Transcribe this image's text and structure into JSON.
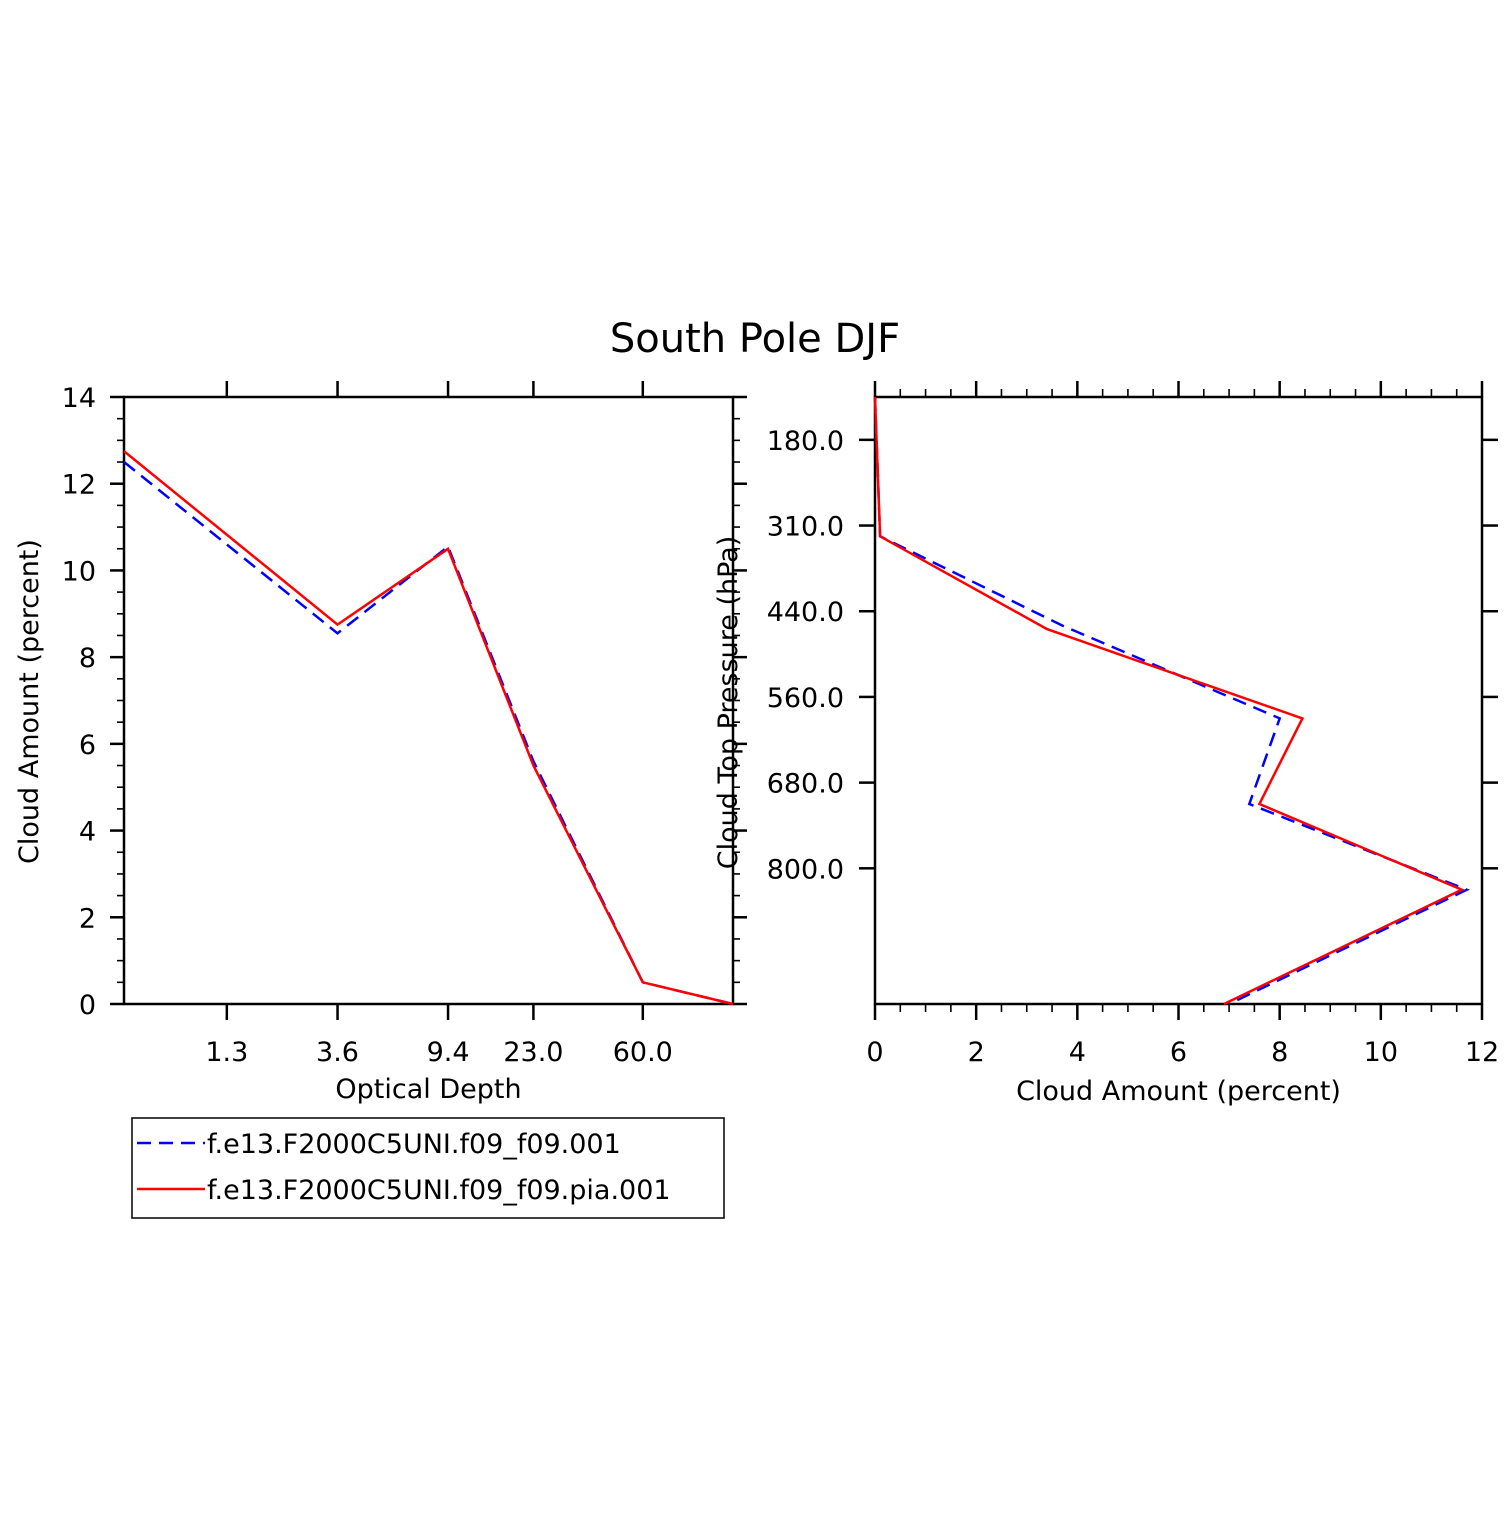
{
  "title": "South Pole DJF",
  "colors": {
    "series1": "#0000ff",
    "series2": "#ff0000",
    "axis": "#000000"
  },
  "legend": {
    "items": [
      {
        "label": "f.e13.F2000C5UNI.f09_f09.001",
        "color": "#0000ff",
        "style": "dashed"
      },
      {
        "label": "f.e13.F2000C5UNI.f09_f09.pia.001",
        "color": "#ff0000",
        "style": "solid"
      }
    ]
  },
  "chart_data": [
    {
      "type": "line",
      "xlabel": "Optical Depth",
      "ylabel": "Cloud Amount (percent)",
      "xticks": [
        "1.3",
        "3.6",
        "9.4",
        "23.0",
        "60.0"
      ],
      "ylim": [
        0,
        14
      ],
      "yticks": [
        0,
        2,
        4,
        6,
        8,
        10,
        12,
        14
      ],
      "grid": false,
      "series": [
        {
          "name": "f.e13.F2000C5UNI.f09_f09.001",
          "color": "#0000ff",
          "style": "dashed",
          "x": [
            0.3,
            2.3,
            6.6,
            14.9,
            42.3,
            100.0
          ],
          "y": [
            12.5,
            8.55,
            10.55,
            5.6,
            0.5,
            0.0
          ]
        },
        {
          "name": "f.e13.F2000C5UNI.f09_f09.pia.001",
          "color": "#ff0000",
          "style": "solid",
          "x": [
            0.3,
            2.3,
            6.6,
            14.9,
            42.3,
            100.0
          ],
          "y": [
            12.75,
            8.75,
            10.5,
            5.5,
            0.5,
            0.0
          ]
        }
      ]
    },
    {
      "type": "line",
      "xlabel": "Cloud Amount (percent)",
      "ylabel": "Cloud Top Pressure (hPa)",
      "xlim": [
        0,
        12
      ],
      "xticks": [
        0,
        2,
        4,
        6,
        8,
        10,
        12
      ],
      "yticks": [
        "180.0",
        "310.0",
        "440.0",
        "560.0",
        "680.0",
        "800.0"
      ],
      "y_inverted": true,
      "grid": false,
      "series": [
        {
          "name": "f.e13.F2000C5UNI.f09_f09.001",
          "color": "#0000ff",
          "style": "dashed",
          "x": [
            0.0,
            0.1,
            3.7,
            8.0,
            7.4,
            11.7,
            7.0
          ],
          "y": [
            50,
            245,
            370,
            500,
            620,
            740,
            900
          ]
        },
        {
          "name": "f.e13.F2000C5UNI.f09_f09.pia.001",
          "color": "#ff0000",
          "style": "solid",
          "x": [
            0.0,
            0.1,
            3.4,
            8.45,
            7.6,
            11.6,
            6.9
          ],
          "y": [
            50,
            245,
            375,
            500,
            620,
            740,
            900
          ]
        }
      ]
    }
  ]
}
